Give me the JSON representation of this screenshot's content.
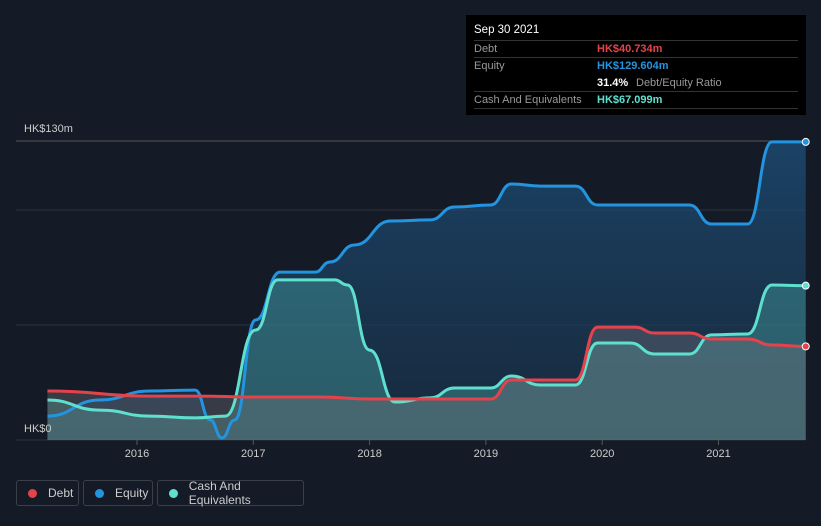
{
  "tooltip": {
    "date": "Sep 30 2021",
    "debt_label": "Debt",
    "debt_value": "HK$40.734m",
    "equity_label": "Equity",
    "equity_value": "HK$129.604m",
    "ratio_value": "31.4%",
    "ratio_label": "Debt/Equity Ratio",
    "cash_label": "Cash And Equivalents",
    "cash_value": "HK$67.099m"
  },
  "legend": [
    {
      "label": "Debt",
      "color": "#e5434b"
    },
    {
      "label": "Equity",
      "color": "#2394df"
    },
    {
      "label": "Cash And Equivalents",
      "color": "#5fe0cf"
    }
  ],
  "chart_data": {
    "type": "area",
    "ylabel_top": "HK$130m",
    "ylabel_bottom": "HK$0",
    "ylim": [
      0,
      130
    ],
    "xlim": [
      2015.23,
      2021.75
    ],
    "x_ticks": [
      "2016",
      "2017",
      "2018",
      "2019",
      "2020",
      "2021"
    ],
    "series": [
      {
        "name": "Equity",
        "color": "#2394df",
        "x": [
          2015.23,
          2015.68,
          2016.11,
          2016.5,
          2016.63,
          2016.73,
          2016.84,
          2017.02,
          2017.23,
          2017.53,
          2017.66,
          2017.87,
          2018.18,
          2018.52,
          2018.73,
          2019.04,
          2019.22,
          2019.47,
          2019.77,
          2019.96,
          2020.32,
          2020.75,
          2020.94,
          2021.25,
          2021.46,
          2021.75
        ],
        "values": [
          10.4,
          17.4,
          21.3,
          21.7,
          8.7,
          0.9,
          8.7,
          52.2,
          73,
          73,
          77.4,
          84.8,
          95.2,
          95.7,
          101.3,
          102.2,
          111.3,
          110.4,
          110.4,
          102.2,
          102.2,
          102.2,
          93.9,
          93.9,
          129.6,
          129.6
        ]
      },
      {
        "name": "Cash And Equivalents",
        "color": "#5fe0cf",
        "x": [
          2015.23,
          2015.68,
          2016.11,
          2016.5,
          2016.76,
          2017.02,
          2017.21,
          2017.7,
          2017.81,
          2018.0,
          2018.22,
          2018.52,
          2018.73,
          2019.04,
          2019.22,
          2019.47,
          2019.77,
          2019.96,
          2020.24,
          2020.45,
          2020.75,
          2020.94,
          2021.25,
          2021.46,
          2021.75
        ],
        "values": [
          17.4,
          13,
          10.4,
          9.6,
          10.4,
          47.8,
          69.6,
          69.6,
          67.4,
          39.1,
          16.5,
          18.3,
          22.6,
          22.6,
          27.8,
          23.9,
          23.9,
          42.2,
          42.2,
          37.4,
          37.4,
          45.7,
          46.1,
          67.4,
          67.1
        ]
      },
      {
        "name": "Debt",
        "color": "#e5434b",
        "x": [
          2015.23,
          2016.11,
          2016.54,
          2016.97,
          2017.57,
          2018.0,
          2018.6,
          2019.04,
          2019.22,
          2019.77,
          2019.96,
          2020.28,
          2020.45,
          2020.75,
          2020.94,
          2021.25,
          2021.46,
          2021.75
        ],
        "values": [
          21.3,
          19.1,
          19.1,
          18.7,
          18.7,
          17.8,
          17.8,
          17.8,
          26.1,
          26.1,
          49.1,
          49.1,
          46.5,
          46.5,
          43.9,
          43.9,
          41.3,
          40.7
        ]
      }
    ]
  }
}
